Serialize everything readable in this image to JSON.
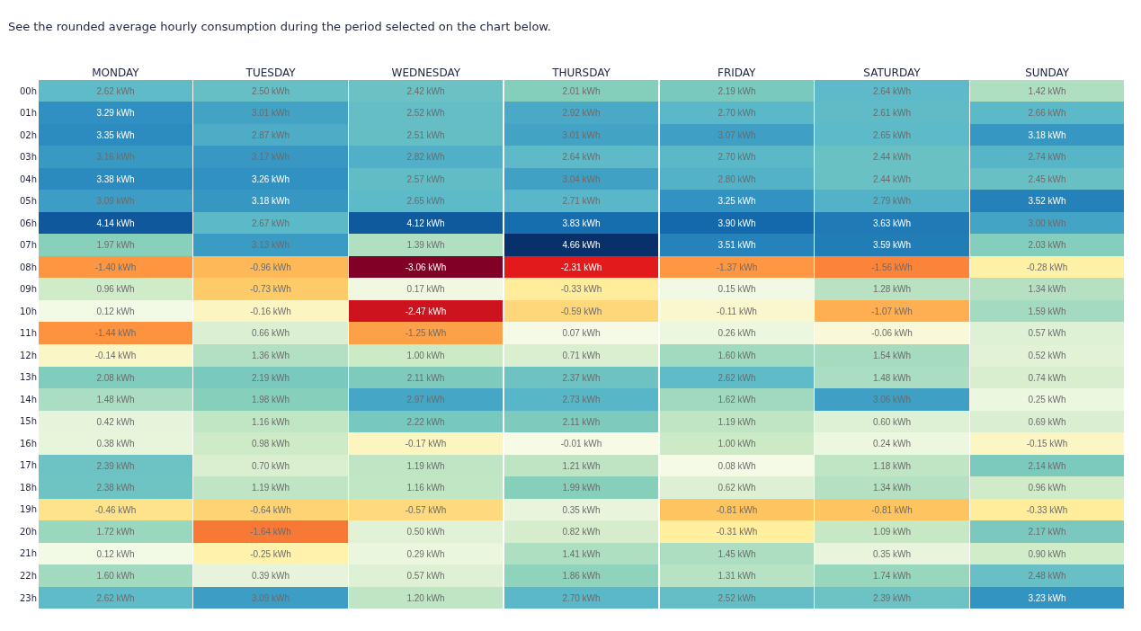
{
  "chart_data": {
    "type": "heatmap",
    "title": "See the rounded average hourly consumption during the period selected on the chart below.",
    "categories": [
      "MONDAY",
      "TUESDAY",
      "WEDNESDAY",
      "THURSDAY",
      "FRIDAY",
      "SATURDAY",
      "SUNDAY"
    ],
    "y_categories": [
      "00h",
      "01h",
      "02h",
      "03h",
      "04h",
      "05h",
      "06h",
      "07h",
      "08h",
      "09h",
      "10h",
      "11h",
      "12h",
      "13h",
      "14h",
      "15h",
      "16h",
      "17h",
      "18h",
      "19h",
      "20h",
      "21h",
      "22h",
      "23h"
    ],
    "cells": [
      [
        2.62,
        2.5,
        2.42,
        2.01,
        2.19,
        2.64,
        1.42
      ],
      [
        3.29,
        3.01,
        2.52,
        2.92,
        2.7,
        2.61,
        2.66
      ],
      [
        3.35,
        2.87,
        2.51,
        3.01,
        3.07,
        2.65,
        3.18
      ],
      [
        3.16,
        3.17,
        2.82,
        2.64,
        2.7,
        2.44,
        2.74
      ],
      [
        3.38,
        3.26,
        2.57,
        3.04,
        2.8,
        2.44,
        2.45
      ],
      [
        3.09,
        3.18,
        2.65,
        2.71,
        3.25,
        2.79,
        3.52
      ],
      [
        4.14,
        2.67,
        4.12,
        3.83,
        3.9,
        3.63,
        3.0
      ],
      [
        1.97,
        3.13,
        1.39,
        4.66,
        3.51,
        3.59,
        2.03
      ],
      [
        -1.4,
        -0.96,
        -3.06,
        -2.31,
        -1.37,
        -1.56,
        -0.28
      ],
      [
        0.96,
        -0.73,
        0.17,
        -0.33,
        0.15,
        1.28,
        1.34
      ],
      [
        0.12,
        -0.16,
        -2.47,
        -0.59,
        -0.11,
        -1.07,
        1.59
      ],
      [
        -1.44,
        0.66,
        -1.25,
        0.07,
        0.26,
        -0.06,
        0.57
      ],
      [
        -0.14,
        1.36,
        1.0,
        0.71,
        1.6,
        1.54,
        0.52
      ],
      [
        2.08,
        2.19,
        2.11,
        2.37,
        2.62,
        1.48,
        0.74
      ],
      [
        1.48,
        1.98,
        2.97,
        2.73,
        1.62,
        3.06,
        0.25
      ],
      [
        0.42,
        1.16,
        2.22,
        2.11,
        1.19,
        0.6,
        0.69
      ],
      [
        0.38,
        0.98,
        -0.17,
        -0.01,
        1.0,
        0.24,
        -0.15
      ],
      [
        2.39,
        0.7,
        1.19,
        1.21,
        0.08,
        1.18,
        2.14
      ],
      [
        2.38,
        1.19,
        1.16,
        1.99,
        0.62,
        1.34,
        0.96
      ],
      [
        -0.46,
        -0.64,
        -0.57,
        0.35,
        -0.81,
        -0.81,
        -0.33
      ],
      [
        1.72,
        -1.64,
        0.5,
        0.82,
        -0.31,
        1.09,
        2.17
      ],
      [
        0.12,
        -0.25,
        0.29,
        1.41,
        1.45,
        0.35,
        0.9
      ],
      [
        1.6,
        0.39,
        0.57,
        1.86,
        1.31,
        1.74,
        2.48
      ],
      [
        2.62,
        3.09,
        1.2,
        2.7,
        2.52,
        2.39,
        3.23
      ]
    ],
    "cell_labels": [
      [
        "2.62 kWh",
        "2.50 kWh",
        "2.42 kWh",
        "2.01 kWh",
        "2.19 kWh",
        "2.64 kWh",
        "1.42 kWh"
      ],
      [
        "3.29 kWh",
        "3.01 kWh",
        "2.52 kWh",
        "2.92 kWh",
        "2.70 kWh",
        "2.61 kWh",
        "2.66 kWh"
      ],
      [
        "3.35 kWh",
        "2.87 kWh",
        "2.51 kWh",
        "3.01 kWh",
        "3.07 kWh",
        "2.65 kWh",
        "3.18 kWh"
      ],
      [
        "3.16 kWh",
        "3.17 kWh",
        "2.82 kWh",
        "2.64 kWh",
        "2.70 kWh",
        "2.44 kWh",
        "2.74 kWh"
      ],
      [
        "3.38 kWh",
        "3.26 kWh",
        "2.57 kWh",
        "3.04 kWh",
        "2.80 kWh",
        "2.44 kWh",
        "2.45 kWh"
      ],
      [
        "3.09 kWh",
        "3.18 kWh",
        "2.65 kWh",
        "2.71 kWh",
        "3.25 kWh",
        "2.79 kWh",
        "3.52 kWh"
      ],
      [
        "4.14 kWh",
        "2.67 kWh",
        "4.12 kWh",
        "3.83 kWh",
        "3.90 kWh",
        "3.63 kWh",
        "3.00 kWh"
      ],
      [
        "1.97 kWh",
        "3.13 kWh",
        "1.39 kWh",
        "4.66 kWh",
        "3.51 kWh",
        "3.59 kWh",
        "2.03 kWh"
      ],
      [
        "-1.40 kWh",
        "-0.96 kWh",
        "-3.06 kWh",
        "-2.31 kWh",
        "-1.37 kWh",
        "-1.56 kWh",
        "-0.28 kWh"
      ],
      [
        "0.96 kWh",
        "-0.73 kWh",
        "0.17 kWh",
        "-0.33 kWh",
        "0.15 kWh",
        "1.28 kWh",
        "1.34 kWh"
      ],
      [
        "0.12 kWh",
        "-0.16 kWh",
        "-2.47 kWh",
        "-0.59 kWh",
        "-0.11 kWh",
        "-1.07 kWh",
        "1.59 kWh"
      ],
      [
        "-1.44 kWh",
        "0.66 kWh",
        "-1.25 kWh",
        "0.07 kWh",
        "0.26 kWh",
        "-0.06 kWh",
        "0.57 kWh"
      ],
      [
        "-0.14 kWh",
        "1.36 kWh",
        "1.00 kWh",
        "0.71 kWh",
        "1.60 kWh",
        "1.54 kWh",
        "0.52 kWh"
      ],
      [
        "2.08 kWh",
        "2.19 kWh",
        "2.11 kWh",
        "2.37 kWh",
        "2.62 kWh",
        "1.48 kWh",
        "0.74 kWh"
      ],
      [
        "1.48 kWh",
        "1.98 kWh",
        "2.97 kWh",
        "2.73 kWh",
        "1.62 kWh",
        "3.06 kWh",
        "0.25 kWh"
      ],
      [
        "0.42 kWh",
        "1.16 kWh",
        "2.22 kWh",
        "2.11 kWh",
        "1.19 kWh",
        "0.60 kWh",
        "0.69 kWh"
      ],
      [
        "0.38 kWh",
        "0.98 kWh",
        "-0.17 kWh",
        "-0.01 kWh",
        "1.00 kWh",
        "0.24 kWh",
        "-0.15 kWh"
      ],
      [
        "2.39 kWh",
        "0.70 kWh",
        "1.19 kWh",
        "1.21 kWh",
        "0.08 kWh",
        "1.18 kWh",
        "2.14 kWh"
      ],
      [
        "2.38 kWh",
        "1.19 kWh",
        "1.16 kWh",
        "1.99 kWh",
        "0.62 kWh",
        "1.34 kWh",
        "0.96 kWh"
      ],
      [
        "-0.46 kWh",
        "-0.64 kWh",
        "-0.57 kWh",
        "0.35 kWh",
        "-0.81 kWh",
        "-0.81 kWh",
        "-0.33 kWh"
      ],
      [
        "1.72 kWh",
        "-1.64 kWh",
        "0.50 kWh",
        "0.82 kWh",
        "-0.31 kWh",
        "1.09 kWh",
        "2.17 kWh"
      ],
      [
        "0.12 kWh",
        "-0.25 kWh",
        "0.29 kWh",
        "1.41 kWh",
        "1.45 kWh",
        "0.35 kWh",
        "0.90 kWh"
      ],
      [
        "1.60 kWh",
        "0.39 kWh",
        "0.57 kWh",
        "1.86 kWh",
        "1.31 kWh",
        "1.74 kWh",
        "2.48 kWh"
      ],
      [
        "2.62 kWh",
        "3.09 kWh",
        "1.20 kWh",
        "2.70 kWh",
        "2.52 kWh",
        "2.39 kWh",
        "3.23 kWh"
      ]
    ]
  }
}
